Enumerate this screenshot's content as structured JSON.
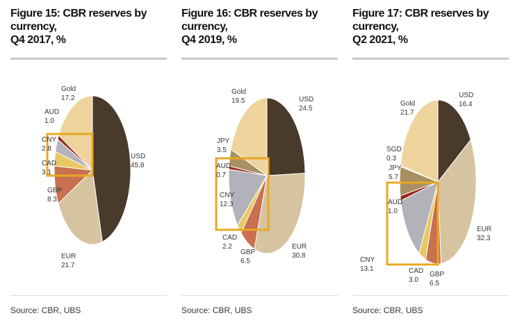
{
  "chart_data": [
    {
      "type": "pie",
      "title": "Figure 15: CBR reserves by currency, Q4 2017, %",
      "title_lines": [
        "Figure 15: CBR reserves by currency,",
        "Q4 2017, %"
      ],
      "source": "Source: CBR, UBS",
      "categories": [
        "USD",
        "EUR",
        "GBP",
        "CAD",
        "CNY",
        "AUD",
        "Gold"
      ],
      "values": [
        45.8,
        21.7,
        8.3,
        3.1,
        2.8,
        1.0,
        17.2
      ],
      "value_labels": [
        "45.8",
        "21.7",
        "8.3",
        "3.1",
        "2.8",
        "1.0",
        "17.2"
      ],
      "colors": [
        "#4a3a2b",
        "#d6c4a0",
        "#c8704f",
        "#e8c862",
        "#b2b2ba",
        "#9b2a1e",
        "#eed49c"
      ],
      "highlight_box_color": "#e8a823"
    },
    {
      "type": "pie",
      "title": "Figure 16: CBR reserves by currency, Q4 2019, %",
      "title_lines": [
        "Figure 16: CBR reserves by currency,",
        "Q4 2019, %"
      ],
      "source": "Source: CBR, UBS",
      "categories": [
        "USD",
        "EUR",
        "GBP",
        "CAD",
        "CNY",
        "AUD",
        "JPY",
        "Gold"
      ],
      "values": [
        24.5,
        30.8,
        6.5,
        2.2,
        12.3,
        0.7,
        3.5,
        19.5
      ],
      "value_labels": [
        "24.5",
        "30.8",
        "6.5",
        "2.2",
        "12.3",
        "0.7",
        "3.5",
        "19.5"
      ],
      "colors": [
        "#4a3a2b",
        "#d6c4a0",
        "#c8704f",
        "#e8c862",
        "#b2b2ba",
        "#9b2a1e",
        "#a89062",
        "#eed49c"
      ],
      "highlight_box_color": "#e8a823"
    },
    {
      "type": "pie",
      "title": "Figure 17: CBR reserves by currency, Q2 2021, %",
      "title_lines": [
        "Figure 17: CBR reserves by currency,",
        "Q2 2021, %"
      ],
      "source": "Source: CBR, UBS",
      "categories": [
        "USD",
        "EUR",
        "GBP",
        "CAD",
        "CNY",
        "AUD",
        "JPY",
        "SGD",
        "Gold"
      ],
      "values": [
        16.4,
        32.3,
        6.5,
        3.0,
        13.1,
        1.0,
        5.7,
        0.3,
        21.7
      ],
      "value_labels": [
        "16.4",
        "32.3",
        "6.5",
        "3.0",
        "13.1",
        "1.0",
        "5.7",
        "0.3",
        "21.7"
      ],
      "colors": [
        "#4a3a2b",
        "#d6c4a0",
        "#c8704f",
        "#e8c862",
        "#b2b2ba",
        "#9b2a1e",
        "#a89062",
        "#e4d6b6",
        "#eed49c"
      ],
      "highlight_box_color": "#e8a823"
    }
  ]
}
